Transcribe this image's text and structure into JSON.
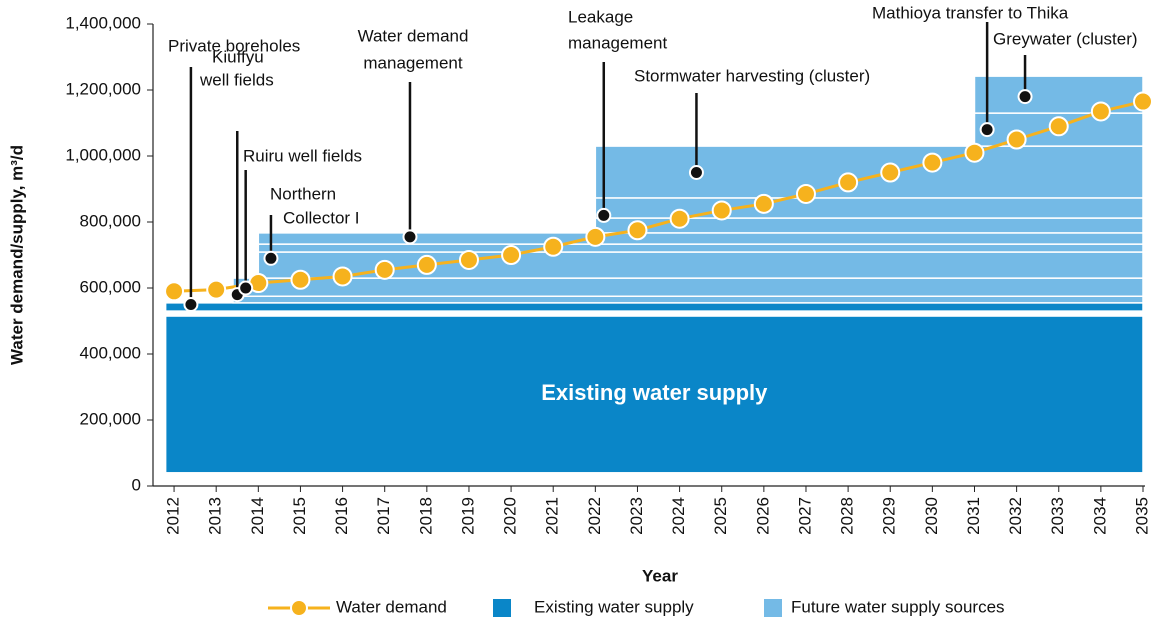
{
  "chart_data": {
    "type": "line",
    "xlabel": "Year",
    "ylabel": "Water demand/supply, m³/d",
    "x": [
      2012,
      2013,
      2014,
      2015,
      2016,
      2017,
      2018,
      2019,
      2020,
      2021,
      2022,
      2023,
      2024,
      2025,
      2026,
      2027,
      2028,
      2029,
      2030,
      2031,
      2032,
      2033,
      2034,
      2035
    ],
    "xlim": [
      2011.5,
      2035
    ],
    "xticks": [
      2012,
      2013,
      2014,
      2015,
      2016,
      2017,
      2018,
      2019,
      2020,
      2021,
      2022,
      2023,
      2024,
      2025,
      2026,
      2027,
      2028,
      2029,
      2030,
      2031,
      2032,
      2033,
      2034,
      2035
    ],
    "ylim": [
      0,
      1400000
    ],
    "yticks": [
      0,
      {
        "value": 200000,
        "label": "200,000"
      },
      {
        "value": 400000,
        "label": "400,000"
      },
      {
        "value": 600000,
        "label": "600,000"
      },
      {
        "value": 800000,
        "label": "800,000"
      },
      {
        "value": 1000000,
        "label": "1,000,000"
      },
      {
        "value": 1200000,
        "label": "1,200,000"
      },
      {
        "value": 1400000,
        "label": "1,400,000"
      }
    ],
    "series": [
      {
        "name": "Water demand",
        "color": "#f6b21d",
        "values": [
          590000,
          595000,
          615000,
          625000,
          635000,
          655000,
          670000,
          685000,
          700000,
          725000,
          755000,
          775000,
          810000,
          835000,
          855000,
          885000,
          920000,
          950000,
          980000,
          1010000,
          1050000,
          1090000,
          1135000,
          1165000
        ]
      }
    ],
    "supply": [
      {
        "name": "Existing water supply",
        "color": "#0a86c8",
        "blocks": [
          {
            "x": [
              2011.8,
              2035
            ],
            "y": [
              40000,
              515000
            ]
          },
          {
            "x": [
              2011.8,
              2035
            ],
            "y": [
              530000,
              555000
            ]
          }
        ]
      },
      {
        "name": "Future water supply sources",
        "color": "#74bae6",
        "blocks": [
          {
            "x": [
              2013.4,
              2035
            ],
            "y": [
              555000,
              575000
            ]
          },
          {
            "x": [
              2013.4,
              2035
            ],
            "y": [
              575000,
              630000
            ]
          },
          {
            "x": [
              2014,
              2035
            ],
            "y": [
              630000,
              709000
            ]
          },
          {
            "x": [
              2014,
              2035
            ],
            "y": [
              709000,
              733000
            ]
          },
          {
            "x": [
              2014,
              2035
            ],
            "y": [
              733000,
              767000
            ]
          },
          {
            "x": [
              2022,
              2035
            ],
            "y": [
              767000,
              812000
            ]
          },
          {
            "x": [
              2022,
              2035
            ],
            "y": [
              812000,
              873000
            ]
          },
          {
            "x": [
              2022,
              2035
            ],
            "y": [
              873000,
              1030000
            ]
          },
          {
            "x": [
              2031,
              2035
            ],
            "y": [
              1030000,
              1130000
            ]
          },
          {
            "x": [
              2031,
              2035
            ],
            "y": [
              1130000,
              1242000
            ]
          }
        ]
      }
    ],
    "annotations": [
      {
        "text": [
          "Private boreholes"
        ],
        "x": 2012.4,
        "y": 550000
      },
      {
        "text": [
          "Kiuffyu",
          "well fields"
        ],
        "x": 2013.5,
        "y": 580000
      },
      {
        "text": [
          "Ruiru well fields"
        ],
        "x": 2013.7,
        "y": 600000
      },
      {
        "text": [
          "Northern",
          "Collector I"
        ],
        "x": 2014.3,
        "y": 690000
      },
      {
        "text": [
          "Water demand",
          "management"
        ],
        "x": 2017.6,
        "y": 755000
      },
      {
        "text": [
          "Leakage",
          "management"
        ],
        "x": 2022.2,
        "y": 820000
      },
      {
        "text": [
          "Stormwater harvesting (cluster)"
        ],
        "x": 2024.4,
        "y": 950000
      },
      {
        "text": [
          "Mathioya transfer to Thika"
        ],
        "x": 2031.3,
        "y": 1080000
      },
      {
        "text": [
          "Greywater (cluster)"
        ],
        "x": 2032.2,
        "y": 1180000
      }
    ]
  }
}
